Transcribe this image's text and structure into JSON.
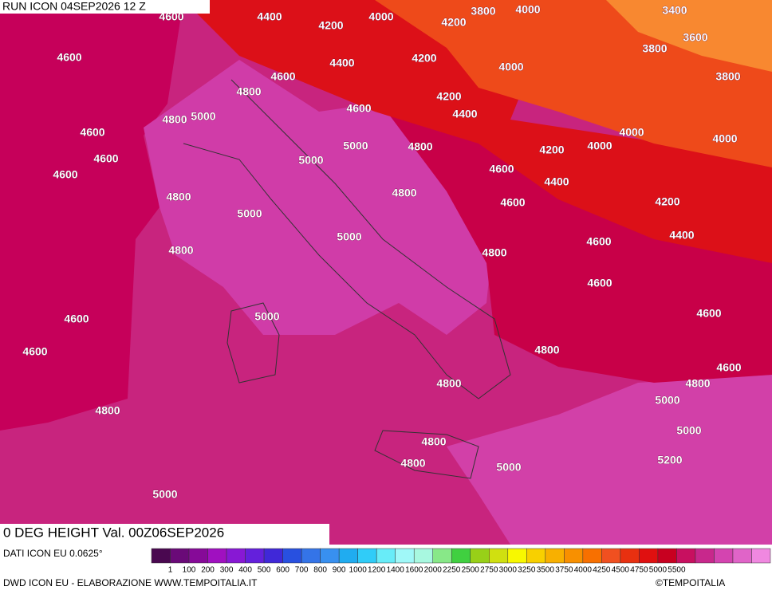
{
  "header": {
    "title": "RUN ICON 04SEP2026 12 Z",
    "valid": "0 DEG HEIGHT Val. 00Z06SEP2026"
  },
  "contour_labels": [
    4600,
    4400,
    4000,
    3800,
    4000,
    3400,
    4200,
    4200,
    3600,
    4600,
    4400,
    4200,
    4000,
    3800,
    3800,
    4600,
    4800,
    4200,
    4400,
    4600,
    4800,
    5000,
    4600,
    5000,
    4800,
    4000,
    4000,
    4200,
    4000,
    4600,
    5000,
    4600,
    4600,
    4400,
    4800,
    4800,
    4600,
    4200,
    5000,
    4400,
    5000,
    4800,
    4600,
    4800,
    4600,
    5000,
    4600,
    4600,
    4600,
    4800,
    4600,
    4800,
    4800,
    4800,
    5000,
    5000,
    4800,
    5200,
    4800,
    5000,
    5000
  ],
  "legend": {
    "colors": [
      "#4a0850",
      "#6a0a78",
      "#860a98",
      "#a010c0",
      "#8818d4",
      "#6420dc",
      "#4028d8",
      "#2850e0",
      "#3474e8",
      "#3890f0",
      "#20acf0",
      "#30ccf8",
      "#68ecf8",
      "#a0f8f8",
      "#a8f8e0",
      "#88e888",
      "#40d040",
      "#98d018",
      "#d0e010",
      "#f8f800",
      "#f8d000",
      "#f8b000",
      "#f89000",
      "#f87000",
      "#f05020",
      "#e83010",
      "#e01010",
      "#c80020",
      "#c81060",
      "#c8288c",
      "#d444b0",
      "#e064c8",
      "#f088e0"
    ],
    "labels": [
      1,
      100,
      200,
      300,
      400,
      500,
      600,
      700,
      800,
      900,
      1000,
      1200,
      1400,
      1600,
      2000,
      2250,
      2500,
      2750,
      3000,
      3250,
      3500,
      3750,
      4000,
      4250,
      4500,
      4750,
      5000,
      5500
    ]
  },
  "footer": {
    "source": "DATI ICON EU 0.0625°",
    "credit": "DWD ICON EU - ELABORAZIONE WWW.TEMPOITALIA.IT",
    "brand": "©TEMPOITALIA"
  }
}
